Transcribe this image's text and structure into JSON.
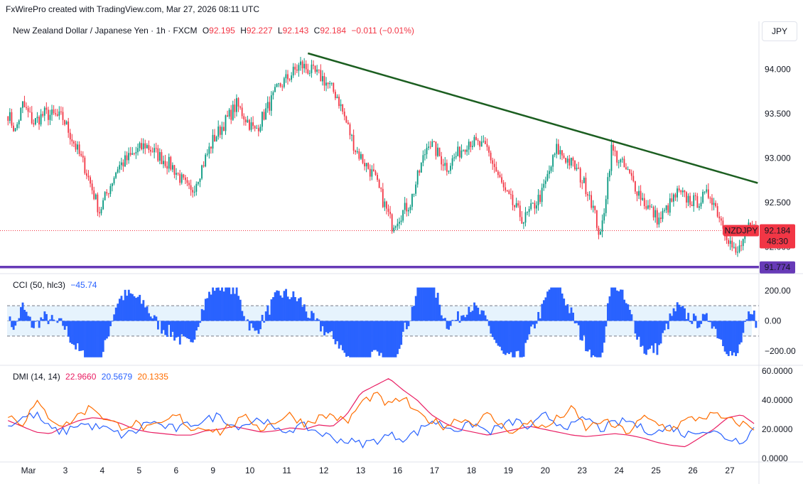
{
  "header": {
    "text": "FxWirePro created with TradingView.com, Mar 27, 2026 08:11 UTC"
  },
  "legend": {
    "symbol": "New Zealand Dollar / Japanese Yen · 1h · FXCM",
    "o_label": "O",
    "o": "92.195",
    "h_label": "H",
    "h": "92.227",
    "l_label": "L",
    "l": "92.143",
    "c_label": "C",
    "c": "92.184",
    "change": "−0.011 (−0.01%)"
  },
  "currency_button": "JPY",
  "price_tag": {
    "symbol": "NZDJPY",
    "price": "92.184",
    "countdown": "48:30"
  },
  "support_tag": "91.774",
  "cci": {
    "label": "CCI (50, hlc3)",
    "value": "−45.74"
  },
  "dmi": {
    "label": "DMI (14, 14)",
    "v1": "22.9660",
    "v2": "20.5679",
    "v3": "20.1335"
  },
  "colors": {
    "up": "#089981",
    "down": "#f23645",
    "trend": "#1b5e20",
    "support": "#673ab7",
    "cci": "#2962ff",
    "dmi_plus": "#2962ff",
    "dmi_minus": "#ff6d00",
    "adx": "#e91e63"
  },
  "chart_data": [
    {
      "type": "candlestick",
      "title": "New Zealand Dollar / Japanese Yen · 1h · FXCM",
      "y_ticks": [
        "94.000",
        "93.500",
        "93.000",
        "92.500",
        "92.000"
      ],
      "x_ticks": [
        "Mar",
        "3",
        "4",
        "5",
        "6",
        "9",
        "10",
        "11",
        "12",
        "13",
        "16",
        "17",
        "18",
        "19",
        "20",
        "23",
        "24",
        "25",
        "26",
        "27"
      ],
      "ylim": [
        91.7,
        94.3
      ],
      "close_path": [
        {
          "x": 0,
          "y": 93.5
        },
        {
          "x": 4,
          "y": 93.3
        },
        {
          "x": 8,
          "y": 93.6
        },
        {
          "x": 14,
          "y": 93.4
        },
        {
          "x": 20,
          "y": 93.5
        },
        {
          "x": 30,
          "y": 93.45
        },
        {
          "x": 42,
          "y": 92.9
        },
        {
          "x": 50,
          "y": 92.4
        },
        {
          "x": 60,
          "y": 92.9
        },
        {
          "x": 75,
          "y": 93.15
        },
        {
          "x": 90,
          "y": 92.9
        },
        {
          "x": 100,
          "y": 92.6
        },
        {
          "x": 112,
          "y": 93.2
        },
        {
          "x": 125,
          "y": 93.6
        },
        {
          "x": 135,
          "y": 93.3
        },
        {
          "x": 148,
          "y": 93.8
        },
        {
          "x": 160,
          "y": 94.05
        },
        {
          "x": 172,
          "y": 93.9
        },
        {
          "x": 180,
          "y": 93.7
        },
        {
          "x": 190,
          "y": 93.1
        },
        {
          "x": 200,
          "y": 92.8
        },
        {
          "x": 210,
          "y": 92.25
        },
        {
          "x": 220,
          "y": 92.5
        },
        {
          "x": 230,
          "y": 93.2
        },
        {
          "x": 240,
          "y": 92.9
        },
        {
          "x": 252,
          "y": 93.2
        },
        {
          "x": 262,
          "y": 93.1
        },
        {
          "x": 272,
          "y": 92.6
        },
        {
          "x": 282,
          "y": 92.3
        },
        {
          "x": 292,
          "y": 92.6
        },
        {
          "x": 300,
          "y": 93.1
        },
        {
          "x": 310,
          "y": 92.9
        },
        {
          "x": 318,
          "y": 92.6
        },
        {
          "x": 324,
          "y": 92.1
        },
        {
          "x": 330,
          "y": 93.1
        },
        {
          "x": 340,
          "y": 92.8
        },
        {
          "x": 348,
          "y": 92.5
        },
        {
          "x": 356,
          "y": 92.3
        },
        {
          "x": 366,
          "y": 92.6
        },
        {
          "x": 376,
          "y": 92.5
        },
        {
          "x": 384,
          "y": 92.6
        },
        {
          "x": 392,
          "y": 92.2
        },
        {
          "x": 398,
          "y": 91.9
        },
        {
          "x": 405,
          "y": 92.2
        }
      ],
      "annotations": [
        {
          "type": "trendline",
          "from": {
            "x": 164,
            "y": 94.18
          },
          "to": {
            "x": 410,
            "y": 92.72
          }
        },
        {
          "type": "horizontal_line",
          "y": 91.774
        },
        {
          "type": "dotted_line",
          "y": 92.184
        }
      ]
    },
    {
      "type": "histogram",
      "title": "CCI (50, hlc3)",
      "y_ticks": [
        "200.00",
        "0.00",
        "−200.00"
      ],
      "ylim": [
        -260,
        260
      ],
      "band": [
        -100,
        100
      ],
      "last_value": -45.74
    },
    {
      "type": "line",
      "title": "DMI (14, 14)",
      "y_ticks": [
        "60.0000",
        "40.0000",
        "20.0000",
        "0.0000"
      ],
      "ylim": [
        0,
        62
      ],
      "series": [
        {
          "name": "ADX",
          "values": [
            26,
            22,
            18,
            17,
            22,
            26,
            28,
            27,
            24,
            20,
            18,
            17,
            16,
            16,
            19,
            20,
            22,
            20,
            18,
            19,
            21,
            20,
            23,
            22,
            30,
            45,
            50,
            55,
            47,
            40,
            30,
            24,
            20,
            18,
            16,
            18,
            20,
            22,
            20,
            18,
            16,
            15,
            16,
            17,
            16,
            14,
            11,
            9,
            8,
            14,
            20,
            28,
            30,
            23
          ]
        },
        {
          "name": "DI+",
          "values": [
            22,
            28,
            30,
            20,
            18,
            24,
            22,
            20,
            16,
            18,
            26,
            22,
            20,
            24,
            26,
            30,
            22,
            24,
            28,
            18,
            20,
            22,
            18,
            14,
            12,
            10,
            12,
            16,
            14,
            18,
            26,
            22,
            20,
            24,
            18,
            22,
            26,
            20,
            30,
            24,
            22,
            28,
            20,
            24,
            26,
            20,
            18,
            22,
            16,
            20,
            18,
            14,
            12,
            22
          ]
        },
        {
          "name": "DI−",
          "values": [
            30,
            24,
            38,
            28,
            22,
            30,
            36,
            26,
            22,
            24,
            20,
            24,
            30,
            20,
            22,
            18,
            24,
            28,
            20,
            26,
            30,
            24,
            28,
            30,
            24,
            38,
            44,
            36,
            42,
            30,
            26,
            22,
            28,
            24,
            30,
            22,
            18,
            26,
            20,
            28,
            34,
            20,
            26,
            22,
            18,
            28,
            24,
            20,
            26,
            28,
            30,
            26,
            24,
            20
          ]
        }
      ]
    }
  ]
}
